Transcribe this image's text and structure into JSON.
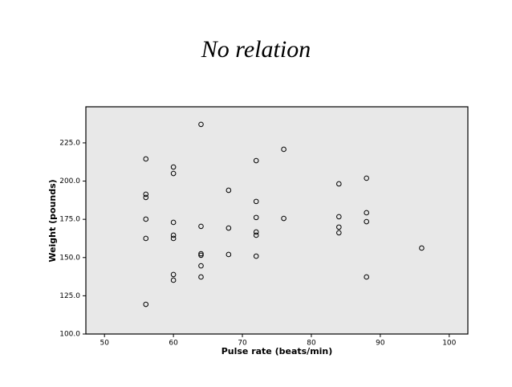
{
  "chart_data": {
    "type": "scatter",
    "title": "No relation",
    "x_label": "Pulse rate (beats/min)",
    "y_label": "Weight (pounds)",
    "x": [
      56,
      56,
      56,
      56,
      56,
      56,
      60,
      60,
      60,
      60,
      60,
      60,
      60,
      64,
      64,
      64,
      64,
      64,
      64,
      68,
      68,
      68,
      72,
      72,
      72,
      72,
      72,
      72,
      76,
      76,
      84,
      84,
      84,
      84,
      88,
      88,
      88,
      88,
      96
    ],
    "y": [
      214.5,
      191.4,
      189.3,
      175.1,
      162.5,
      119.4,
      209.2,
      205,
      173,
      164.6,
      162.5,
      138.9,
      135.2,
      237.1,
      170.4,
      152.5,
      151.5,
      144.6,
      137.3,
      194,
      169.3,
      152,
      213.4,
      186.7,
      176.2,
      166.7,
      164.6,
      150.9,
      220.8,
      175.6,
      198.2,
      176.7,
      169.9,
      166.2,
      201.9,
      179.3,
      173.5,
      137.3,
      156.2
    ],
    "xlim": [
      47.3,
      102.7
    ],
    "ylim": [
      100,
      248.6
    ],
    "xticks": [
      50,
      60,
      70,
      80,
      90,
      100
    ],
    "yticks": [
      {
        "value": 100,
        "label": "100.0"
      },
      {
        "value": 125,
        "label": "125.0"
      },
      {
        "value": 150,
        "label": "150.0"
      },
      {
        "value": 175,
        "label": "175.0"
      },
      {
        "value": 200,
        "label": "200.0"
      },
      {
        "value": 225,
        "label": "225.0"
      }
    ],
    "color": "#000000",
    "background": "#e8e8e8"
  }
}
